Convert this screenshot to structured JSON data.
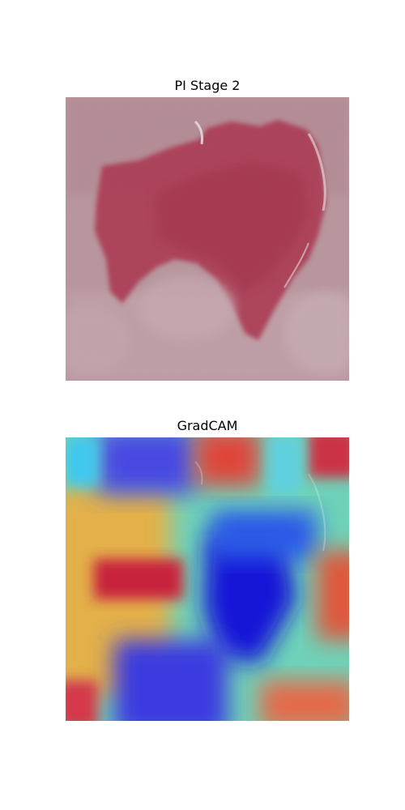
{
  "panels": [
    {
      "title": "PI Stage 2"
    },
    {
      "title": "GradCAM"
    }
  ],
  "colors": {
    "skin_base": "#b38f96",
    "wound": "#b0374e",
    "heatmap_red": "#d8303a",
    "heatmap_blue": "#1a1ae6",
    "heatmap_cyan": "#38c8f0",
    "heatmap_yellow": "#e6dc5a"
  }
}
